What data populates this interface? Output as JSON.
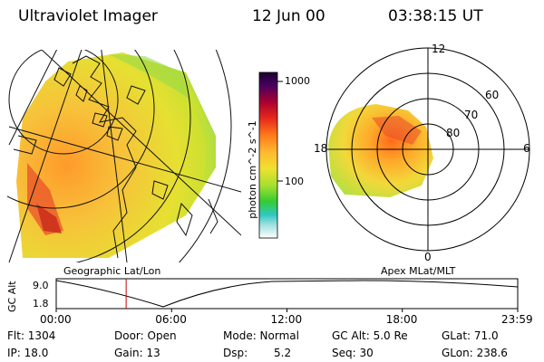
{
  "header": {
    "instrument": "Ultraviolet Imager",
    "date": "12 Jun 00",
    "time": "03:38:15 UT"
  },
  "colorbar": {
    "unit": "photon cm^-2 s^-1",
    "tick_1000": "1000",
    "tick_100": "100"
  },
  "map": {
    "projection_label": "Geographic Lat/Lon"
  },
  "polar": {
    "label": "Apex MLat/MLT",
    "mlt_12": "12",
    "mlt_18": "18",
    "mlt_6": "6",
    "mlt_0": "0",
    "lat_60": "60",
    "lat_70": "70",
    "lat_80": "80"
  },
  "altitude": {
    "axis_label": "GC Alt",
    "y_max": "9.0",
    "y_min": "1.8",
    "x_ticks": [
      "00:00",
      "06:00",
      "12:00",
      "18:00",
      "23:59"
    ],
    "current_hour": 3.637
  },
  "footer": {
    "flt": "Flt: 1304",
    "ip": "IP: 18.0",
    "door": "Door: Open",
    "gain": "Gain: 13",
    "mode": "Mode: Normal",
    "dsp_label": "Dsp:",
    "dsp_value": "5.2",
    "gc_alt": "GC Alt: 5.0 Re",
    "seq": "Seq: 30",
    "glat": "GLat: 71.0",
    "glon": "GLon: 238.6"
  },
  "colors": {
    "colorbar_top": "#1a0030",
    "colorbar_mid": "#ff9900",
    "colorbar_low": "#33cc33",
    "colorbar_bottom": "#ffffff",
    "marker": "#cc0000"
  }
}
